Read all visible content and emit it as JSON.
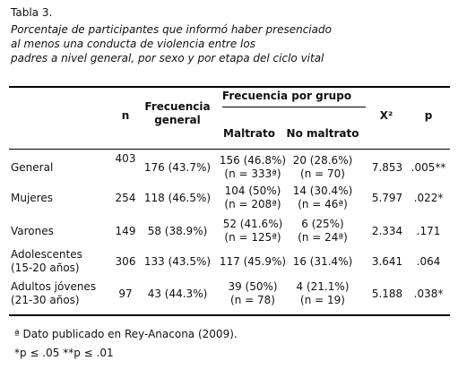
{
  "caption": {
    "label": "Tabla 3.",
    "title_lines": [
      "Porcentaje de participantes que informó haber presenciado",
      "al menos una conducta de violencia entre los",
      "padres a nivel general, por sexo y por etapa del ciclo vital"
    ]
  },
  "table": {
    "header": {
      "n": "n",
      "general": [
        "Frecuencia",
        "general"
      ],
      "group": "Frecuencia por grupo",
      "maltrato": "Maltrato",
      "no_maltrato": "No maltrato",
      "x2": "X²",
      "p": "p"
    },
    "rows": [
      [
        [
          "General"
        ],
        [
          "403"
        ],
        [
          "176 (43.7%)"
        ],
        [
          "156 (46.8%)",
          "(n = 333ª)"
        ],
        [
          "20 (28.6%)",
          "(n = 70)"
        ],
        [
          "7.853"
        ],
        [
          ".005**"
        ]
      ],
      [
        [
          "Mujeres"
        ],
        [
          "254"
        ],
        [
          "118 (46.5%)"
        ],
        [
          "104 (50%)",
          "(n = 208ª)"
        ],
        [
          "14 (30.4%)",
          "(n = 46ª)"
        ],
        [
          "5.797"
        ],
        [
          ".022*"
        ]
      ],
      [
        [
          "Varones"
        ],
        [
          "149"
        ],
        [
          "58 (38.9%)"
        ],
        [
          "52 (41.6%)",
          "(n = 125ª)"
        ],
        [
          "6 (25%)",
          "(n = 24ª)"
        ],
        [
          "2.334"
        ],
        [
          ".171"
        ]
      ],
      [
        [
          "Adolescentes",
          "(15-20 años)"
        ],
        [
          "306"
        ],
        [
          "133 (43.5%)"
        ],
        [
          "117 (45.9%)"
        ],
        [
          "16 (31.4%)"
        ],
        [
          "3.641"
        ],
        [
          ".064"
        ]
      ],
      [
        [
          "Adultos jóvenes",
          "(21-30 años)"
        ],
        [
          "97"
        ],
        [
          "43 (44.3%)"
        ],
        [
          "39 (50%)",
          "(n = 78)"
        ],
        [
          "4 (21.1%)",
          "(n = 19)"
        ],
        [
          "5.188"
        ],
        [
          ".038*"
        ]
      ]
    ]
  },
  "footnotes": [
    "ª Dato publicado en Rey-Anacona (2009).",
    "*p ≤ .05 **p ≤ .01"
  ]
}
